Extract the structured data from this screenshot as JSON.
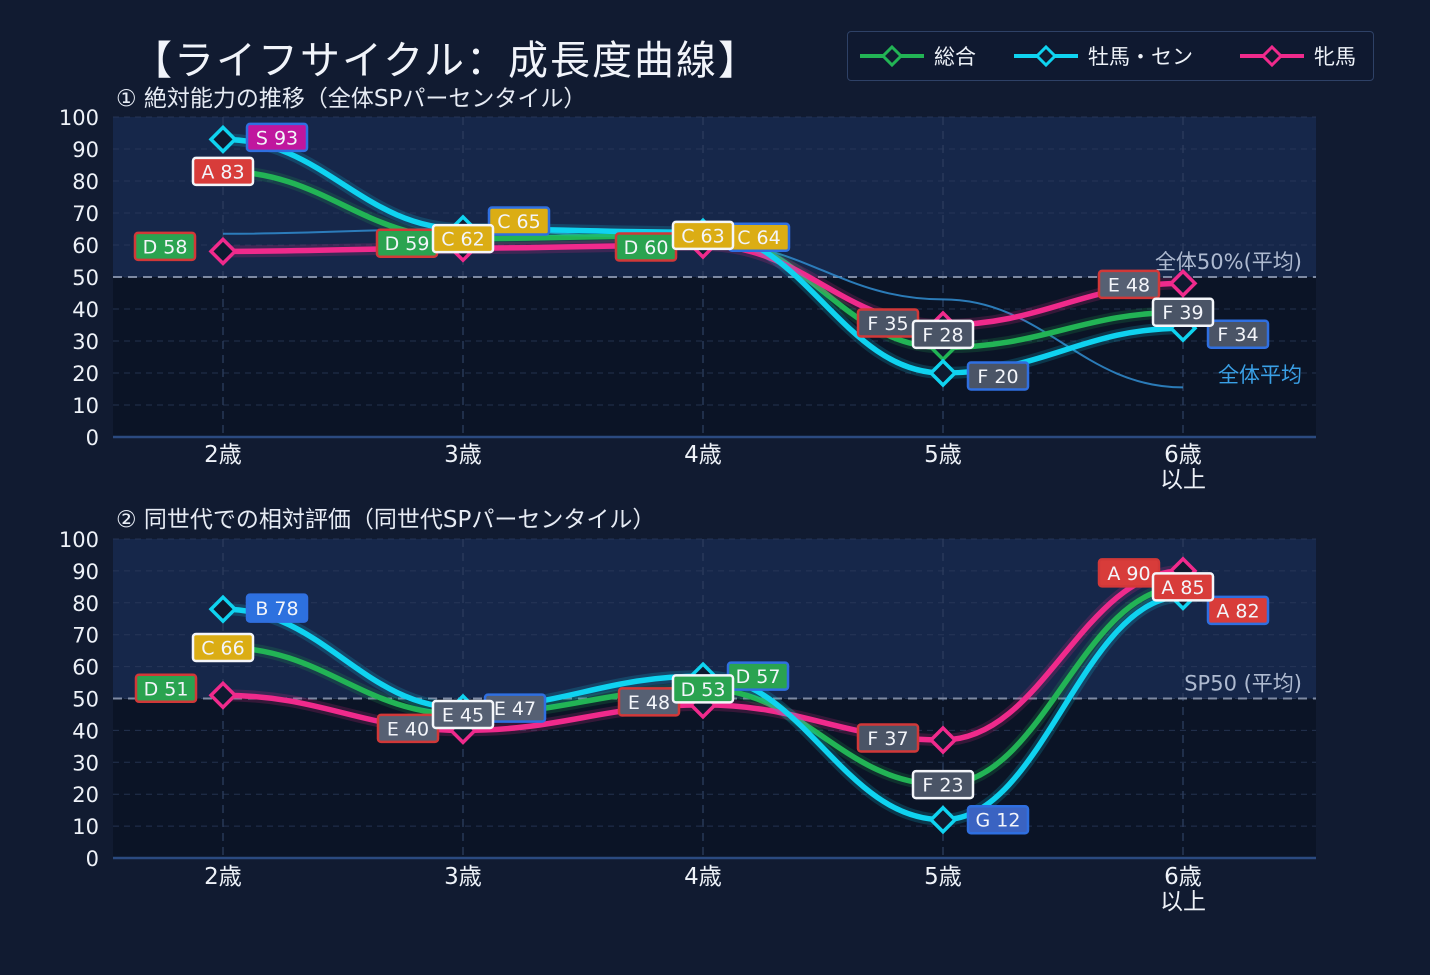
{
  "title": "【ライフサイクル：成長度曲線】",
  "legend": {
    "items": [
      {
        "label": "総合",
        "color": "#22b455"
      },
      {
        "label": "牡馬・セン",
        "color": "#0fd3f0"
      },
      {
        "label": "牝馬",
        "color": "#f02a8c"
      }
    ]
  },
  "colors": {
    "background": "#111b31",
    "plot_upper": "#16274a",
    "plot_lower": "#0b1426",
    "reference": "#2f86c8",
    "grade": {
      "S": "#c0169e",
      "A": "#d83c3a",
      "B": "#2d71df",
      "C": "#dbad14",
      "D": "#2aa350",
      "E": "#566073",
      "F": "#4a5466",
      "G": "#3a63c2"
    }
  },
  "chart_data": [
    {
      "type": "line",
      "title": "① 絶対能力の推移（全体SPパーセンタイル）",
      "categories": [
        "2歳",
        "3歳",
        "4歳",
        "5歳",
        "6歳\n以上"
      ],
      "ylim": [
        0,
        100
      ],
      "yticks": [
        0,
        10,
        20,
        30,
        40,
        50,
        60,
        70,
        80,
        90,
        100
      ],
      "grid": true,
      "legend_position": "top-right",
      "reference_line": {
        "value": 50,
        "label": "全体50%(平均)"
      },
      "average_series": {
        "label": "全体平均",
        "values": [
          63.5,
          65,
          61,
          43,
          15.5
        ]
      },
      "series": [
        {
          "name": "総合",
          "values": [
            83,
            62,
            63,
            28,
            39
          ],
          "grades": [
            "A",
            "C",
            "C",
            "F",
            "F"
          ]
        },
        {
          "name": "牡馬・セン",
          "values": [
            93,
            65,
            64,
            20,
            34
          ],
          "grades": [
            "S",
            "C",
            "C",
            "F",
            "F"
          ]
        },
        {
          "name": "牝馬",
          "values": [
            58,
            59,
            60,
            35,
            48
          ],
          "grades": [
            "D",
            "D",
            "D",
            "F",
            "E"
          ]
        }
      ]
    },
    {
      "type": "line",
      "title": "② 同世代での相対評価（同世代SPパーセンタイル）",
      "categories": [
        "2歳",
        "3歳",
        "4歳",
        "5歳",
        "6歳\n以上"
      ],
      "ylim": [
        0,
        100
      ],
      "yticks": [
        0,
        10,
        20,
        30,
        40,
        50,
        60,
        70,
        80,
        90,
        100
      ],
      "grid": true,
      "reference_line": {
        "value": 50,
        "label": "SP50 (平均)"
      },
      "series": [
        {
          "name": "総合",
          "values": [
            66,
            45,
            53,
            23,
            85
          ],
          "grades": [
            "C",
            "E",
            "D",
            "F",
            "A"
          ]
        },
        {
          "name": "牡馬・セン",
          "values": [
            78,
            47,
            57,
            12,
            82
          ],
          "grades": [
            "B",
            "E",
            "D",
            "G",
            "A"
          ]
        },
        {
          "name": "牝馬",
          "values": [
            51,
            40,
            48,
            37,
            90
          ],
          "grades": [
            "D",
            "E",
            "E",
            "F",
            "A"
          ]
        }
      ]
    }
  ]
}
